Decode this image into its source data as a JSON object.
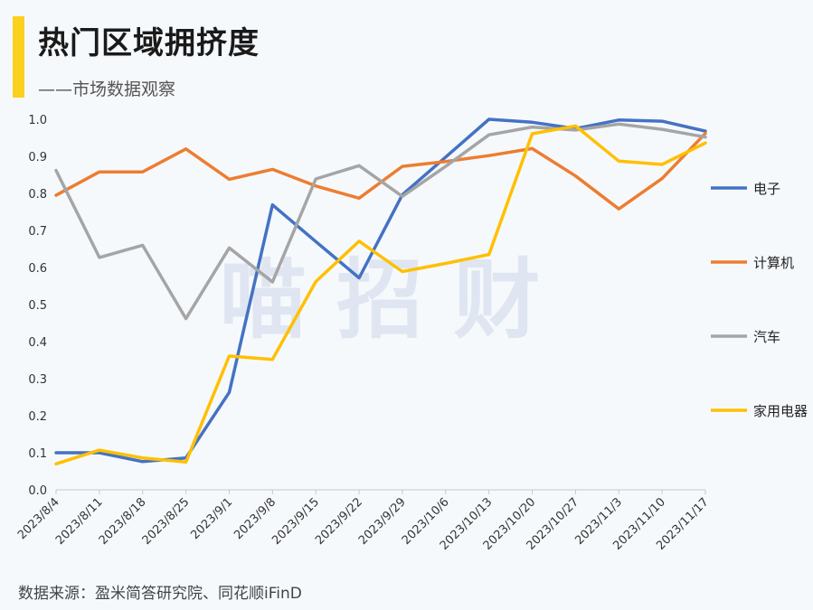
{
  "header": {
    "title": "热门区域拥挤度",
    "subtitle": "——市场数据观察"
  },
  "watermark": "喵 招 财",
  "footer": {
    "source": "数据来源：盈米简答研究院、同花顺iFinD"
  },
  "colors": {
    "background": "#f6f9fc",
    "accent": "#fcd01e"
  },
  "chart_data": {
    "type": "line",
    "title": "",
    "xlabel": "",
    "ylabel": "",
    "ylim": [
      0,
      1.0
    ],
    "yticks": [
      "0.0",
      "0.1",
      "0.2",
      "0.3",
      "0.4",
      "0.5",
      "0.6",
      "0.7",
      "0.8",
      "0.9",
      "1.0"
    ],
    "grid": false,
    "legend_position": "right",
    "categories": [
      "2023/8/4",
      "2023/8/11",
      "2023/8/18",
      "2023/8/25",
      "2023/9/1",
      "2023/9/8",
      "2023/9/15",
      "2023/9/22",
      "2023/9/29",
      "2023/10/6",
      "2023/10/13",
      "2023/10/20",
      "2023/10/27",
      "2023/11/3",
      "2023/11/10",
      "2023/11/17"
    ],
    "series": [
      {
        "name": "电子",
        "color": "#4472c4",
        "values": [
          0.1,
          0.1,
          0.076,
          0.086,
          0.263,
          0.769,
          0.67,
          0.572,
          0.796,
          0.898,
          1.0,
          0.992,
          0.975,
          0.998,
          0.995,
          0.968
        ]
      },
      {
        "name": "计算机",
        "color": "#ed7d31",
        "values": [
          0.795,
          0.858,
          0.858,
          0.92,
          0.838,
          0.865,
          0.82,
          0.787,
          0.873,
          0.886,
          0.902,
          0.921,
          0.847,
          0.758,
          0.84,
          0.962
        ]
      },
      {
        "name": "汽车",
        "color": "#a5a5a5",
        "values": [
          0.862,
          0.627,
          0.66,
          0.462,
          0.653,
          0.561,
          0.839,
          0.875,
          0.792,
          0.873,
          0.958,
          0.979,
          0.971,
          0.987,
          0.973,
          0.952
        ]
      },
      {
        "name": "家用电器",
        "color": "#ffc000",
        "values": [
          0.07,
          0.107,
          0.086,
          0.075,
          0.361,
          0.352,
          0.562,
          0.671,
          0.589,
          0.611,
          0.635,
          0.961,
          0.982,
          0.887,
          0.878,
          0.936
        ]
      }
    ]
  }
}
